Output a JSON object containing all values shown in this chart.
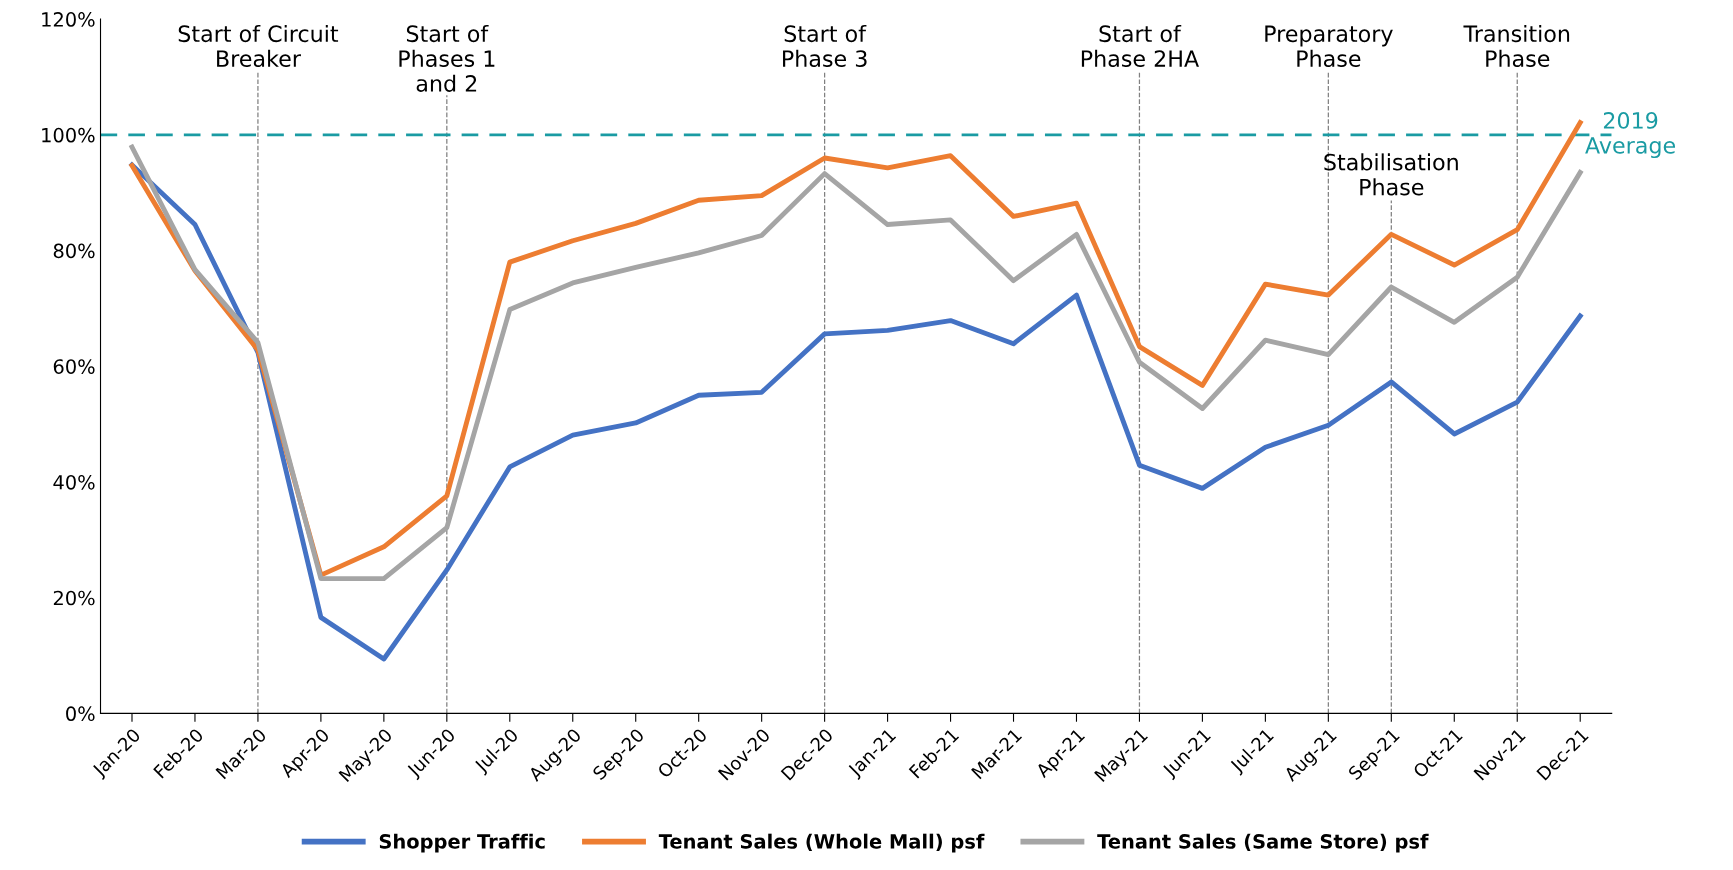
{
  "chart_data": {
    "type": "line",
    "categories": [
      "Jan-20",
      "Feb-20",
      "Mar-20",
      "Apr-20",
      "May-20",
      "Jun-20",
      "Jul-20",
      "Aug-20",
      "Sep-20",
      "Oct-20",
      "Nov-20",
      "Dec-20",
      "Jan-21",
      "Feb-21",
      "Mar-21",
      "Apr-21",
      "May-21",
      "Jun-21",
      "Jul-21",
      "Aug-21",
      "Sep-21",
      "Oct-21",
      "Nov-21",
      "Dec-21"
    ],
    "series": [
      {
        "name": "Shopper Traffic",
        "color": "#4472c4",
        "values": [
          94.8,
          84.5,
          62.4,
          16.6,
          9.4,
          24.8,
          42.6,
          48.1,
          50.2,
          55,
          55.5,
          65.6,
          66.2,
          67.9,
          63.9,
          72.3,
          42.9,
          38.9,
          46,
          49.8,
          57.3,
          48.3,
          53.8,
          68.7
        ]
      },
      {
        "name": "Tenant Sales (Whole Mall) psf",
        "color": "#ed7d31",
        "values": [
          94.7,
          76.5,
          62.8,
          23.9,
          28.8,
          37.6,
          78,
          81.7,
          84.7,
          88.7,
          89.5,
          96,
          94.3,
          96.4,
          85.9,
          88.2,
          63.4,
          56.7,
          74.2,
          72.3,
          82.8,
          77.5,
          83.6,
          102.1
        ]
      },
      {
        "name": "Tenant Sales (Same Store) psf",
        "color": "#a5a5a5",
        "values": [
          97.9,
          76.7,
          64.1,
          23.3,
          23.3,
          32.1,
          69.8,
          74.4,
          77.1,
          79.6,
          82.6,
          93.3,
          84.5,
          85.3,
          74.8,
          82.8,
          60.7,
          52.7,
          64.5,
          62,
          73.7,
          67.6,
          75.4,
          93.5
        ]
      }
    ],
    "ylim": [
      0,
      120
    ],
    "yticks": [
      {
        "value": 0,
        "label": "0%"
      },
      {
        "value": 20,
        "label": "20%"
      },
      {
        "value": 40,
        "label": "40%"
      },
      {
        "value": 60,
        "label": "60%"
      },
      {
        "value": 80,
        "label": "80%"
      },
      {
        "value": 100,
        "label": "100%"
      },
      {
        "value": 120,
        "label": "120%"
      }
    ],
    "ref_lines": [
      {
        "axis": "y",
        "value": 100,
        "label": "2019\nAverage",
        "color": "#1a9ba3",
        "line_style": "dashed"
      },
      {
        "axis": "x",
        "value": "Mar-20",
        "label": "Start of Circuit\nBreaker",
        "color": "#808080",
        "line_style": "dashed"
      },
      {
        "axis": "x",
        "value": "Jun-20",
        "label": "Start of\nPhases 1\nand 2",
        "color": "#808080",
        "line_style": "dashed"
      },
      {
        "axis": "x",
        "value": "Dec-20",
        "label": "Start of\nPhase 3",
        "color": "#808080",
        "line_style": "dashed"
      },
      {
        "axis": "x",
        "value": "May-21",
        "label": "Start of\nPhase 2HA",
        "color": "#808080",
        "line_style": "dashed"
      },
      {
        "axis": "x",
        "value": "Aug-21",
        "label": "Preparatory\nPhase",
        "color": "#808080",
        "line_style": "dashed"
      },
      {
        "axis": "x",
        "value": "Sep-21",
        "label": "Stabilisation\nPhase",
        "color": "#808080",
        "line_style": "dashed"
      },
      {
        "axis": "x",
        "value": "Nov-21",
        "label": "Transition\nPhase",
        "color": "#808080",
        "line_style": "dashed"
      }
    ],
    "grid": false,
    "legend": "bottom",
    "marker": "none",
    "line_style": "solid"
  }
}
